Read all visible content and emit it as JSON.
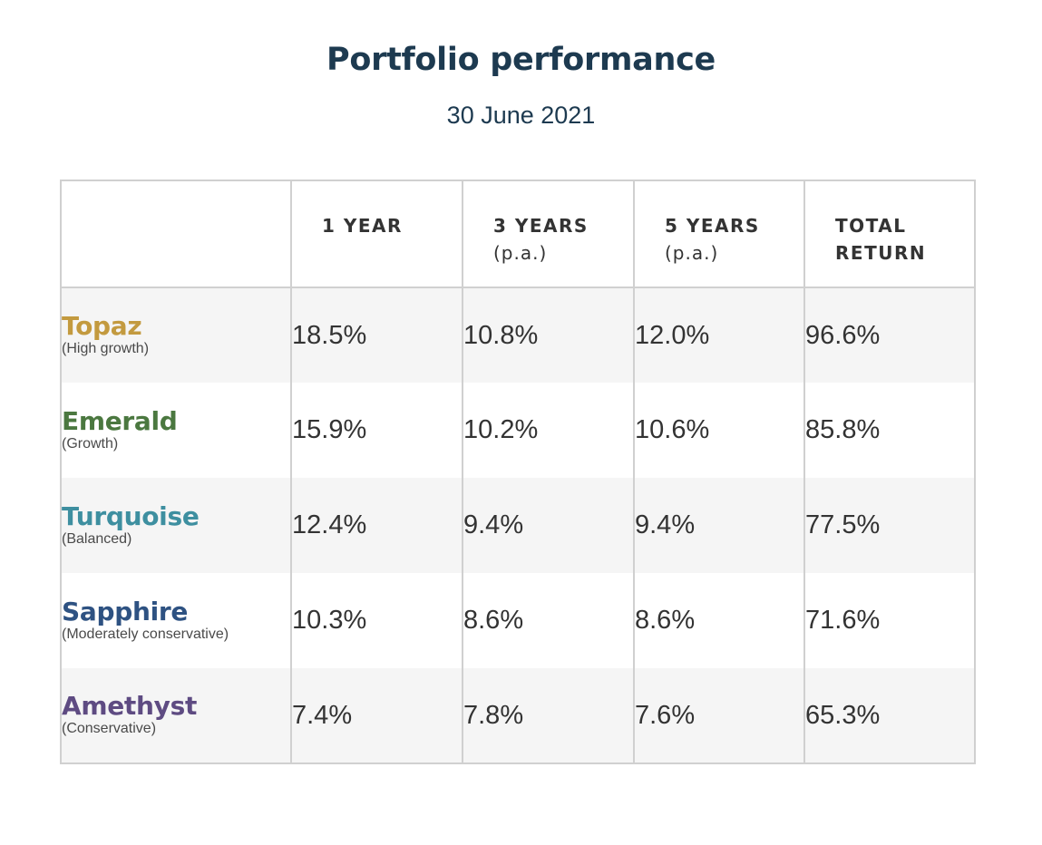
{
  "header": {
    "title": "Portfolio performance",
    "subtitle": "30 June 2021"
  },
  "chart_data": {
    "type": "table",
    "title": "Portfolio performance",
    "subtitle": "30 June 2021",
    "columns": [
      {
        "line1": "",
        "line2": ""
      },
      {
        "line1": "1 YEAR",
        "line2": ""
      },
      {
        "line1": "3 YEARS",
        "line2": "(p.a.)"
      },
      {
        "line1": "5 YEARS",
        "line2": "(p.a.)"
      },
      {
        "line1": "TOTAL",
        "line2": "RETURN"
      }
    ],
    "rows": [
      {
        "name": "Topaz",
        "desc": "(High growth)",
        "color": "#c39a3f",
        "values": [
          "18.5%",
          "10.8%",
          "12.0%",
          "96.6%"
        ]
      },
      {
        "name": "Emerald",
        "desc": "(Growth)",
        "color": "#4b7840",
        "values": [
          "15.9%",
          "10.2%",
          "10.6%",
          "85.8%"
        ]
      },
      {
        "name": "Turquoise",
        "desc": "(Balanced)",
        "color": "#3e8fa0",
        "values": [
          "12.4%",
          "9.4%",
          "9.4%",
          "77.5%"
        ]
      },
      {
        "name": "Sapphire",
        "desc": "(Moderately conservative)",
        "color": "#2e5282",
        "values": [
          "10.3%",
          "8.6%",
          "8.6%",
          "71.6%"
        ]
      },
      {
        "name": "Amethyst",
        "desc": "(Conservative)",
        "color": "#5e4b82",
        "values": [
          "7.4%",
          "7.8%",
          "7.6%",
          "65.3%"
        ]
      }
    ]
  }
}
